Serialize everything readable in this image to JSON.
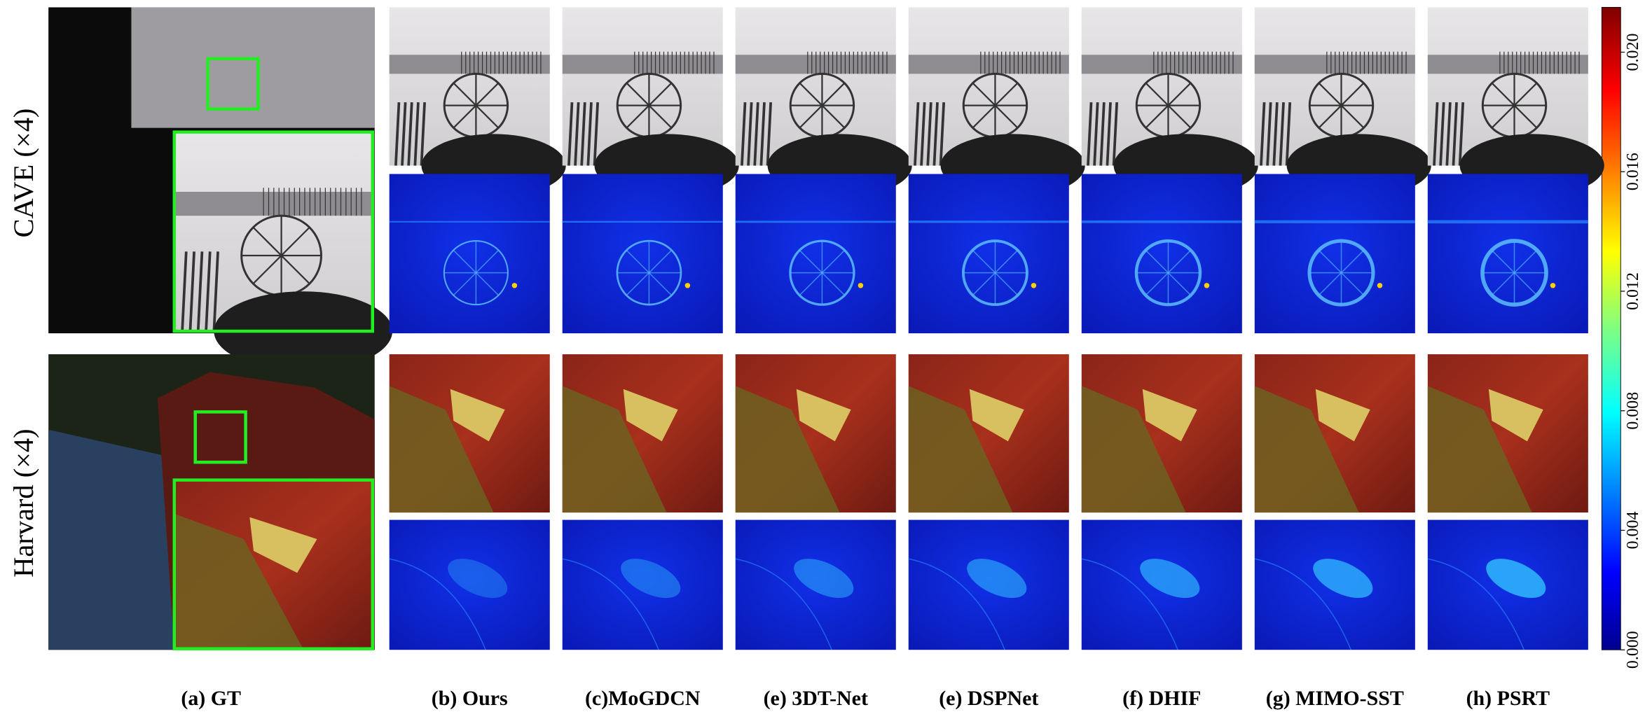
{
  "rows": [
    "CAVE (×4)",
    "Harvard (×4)"
  ],
  "columns": [
    "(a) GT",
    "(b) Ours",
    "(c)MoGDCN",
    "(e) 3DT-Net",
    "(e) DSPNet",
    "(f) DHIF",
    "(g) MIMO-SST",
    "(h) PSRT"
  ],
  "colorbar": {
    "lim": [
      0,
      0.0215
    ],
    "ticks": [
      {
        "value": 0,
        "label": "0.000"
      },
      {
        "value": 0.004,
        "label": "0.004"
      },
      {
        "value": 0.008,
        "label": "0.008"
      },
      {
        "value": 0.012,
        "label": "0.012"
      },
      {
        "value": 0.016,
        "label": "0.016"
      },
      {
        "value": 0.02,
        "label": "0.020"
      }
    ]
  }
}
